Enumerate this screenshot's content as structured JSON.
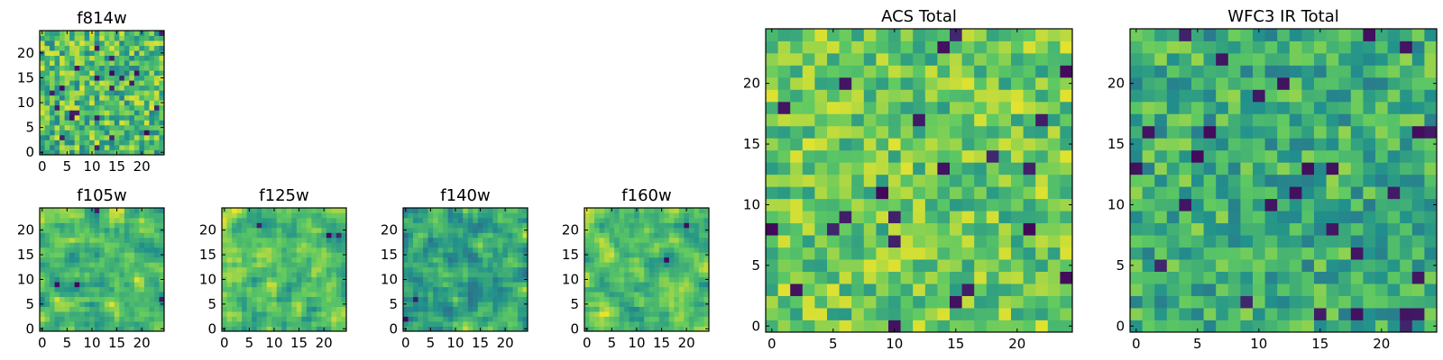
{
  "colormap": {
    "name": "viridis",
    "stops": [
      "#440154",
      "#3b528b",
      "#21918c",
      "#5ec962",
      "#fde725"
    ]
  },
  "chart_data": [
    {
      "type": "heatmap",
      "title": "f814w",
      "grid_size": 25,
      "smooth": false,
      "seed": 11,
      "center_value": 0.68,
      "spread": 0.27,
      "x_ticks": [
        "0",
        "5",
        "10",
        "15",
        "20"
      ],
      "y_ticks": [
        "0",
        "5",
        "10",
        "15",
        "20"
      ]
    },
    {
      "type": "heatmap",
      "title": "f105w",
      "grid_size": 25,
      "smooth": true,
      "seed": 23,
      "center_value": 0.7,
      "spread": 0.26,
      "x_ticks": [
        "0",
        "5",
        "10",
        "15",
        "20"
      ],
      "y_ticks": [
        "0",
        "5",
        "10",
        "15",
        "20"
      ]
    },
    {
      "type": "heatmap",
      "title": "f125w",
      "grid_size": 25,
      "smooth": true,
      "seed": 37,
      "center_value": 0.71,
      "spread": 0.27,
      "x_ticks": [
        "0",
        "5",
        "10",
        "15",
        "20"
      ],
      "y_ticks": [
        "0",
        "5",
        "10",
        "15",
        "20"
      ]
    },
    {
      "type": "heatmap",
      "title": "f140w",
      "grid_size": 25,
      "smooth": true,
      "seed": 41,
      "center_value": 0.62,
      "spread": 0.3,
      "x_ticks": [
        "0",
        "5",
        "10",
        "15",
        "20"
      ],
      "y_ticks": [
        "0",
        "5",
        "10",
        "15",
        "20"
      ]
    },
    {
      "type": "heatmap",
      "title": "f160w",
      "grid_size": 25,
      "smooth": true,
      "seed": 59,
      "center_value": 0.7,
      "spread": 0.27,
      "x_ticks": [
        "0",
        "5",
        "10",
        "15",
        "20"
      ],
      "y_ticks": [
        "0",
        "5",
        "10",
        "15",
        "20"
      ]
    },
    {
      "type": "heatmap",
      "title": "ACS Total",
      "grid_size": 25,
      "smooth": false,
      "seed": 71,
      "center_value": 0.74,
      "spread": 0.22,
      "x_ticks": [
        "0",
        "5",
        "10",
        "15",
        "20"
      ],
      "y_ticks": [
        "0",
        "5",
        "10",
        "15",
        "20"
      ]
    },
    {
      "type": "heatmap",
      "title": "WFC3 IR Total",
      "grid_size": 25,
      "smooth": false,
      "seed": 83,
      "center_value": 0.62,
      "spread": 0.22,
      "x_ticks": [
        "0",
        "5",
        "10",
        "15",
        "20"
      ],
      "y_ticks": [
        "0",
        "5",
        "10",
        "15",
        "20"
      ]
    }
  ]
}
